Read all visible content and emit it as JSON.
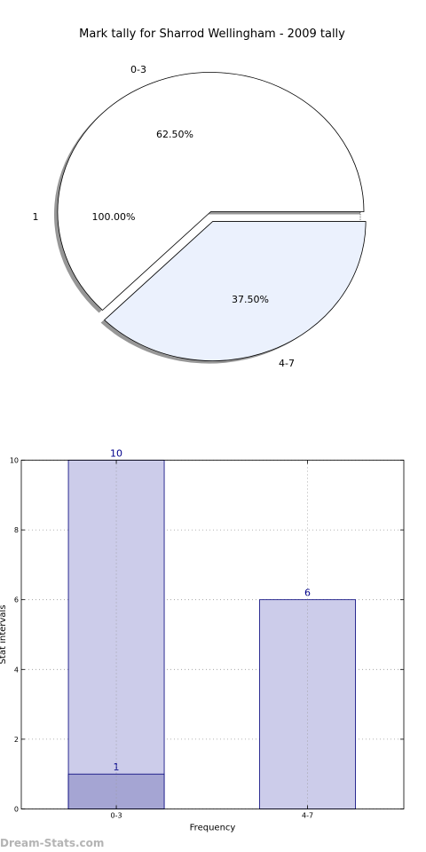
{
  "title": "Mark tally for Sharrod Wellingham - 2009 tally",
  "watermark": "Dream-Stats.com",
  "chart_data": [
    {
      "type": "pie",
      "name": "outer-pie",
      "slices": [
        {
          "label": "0-3",
          "value": 62.5,
          "pct_label": "62.50%",
          "color": "#ffffff"
        },
        {
          "label": "4-7",
          "value": 37.5,
          "pct_label": "37.50%",
          "color": "#ebf1fd"
        }
      ],
      "inner_slices": [
        {
          "label": "1",
          "value": 100,
          "pct_label": "100.00%",
          "color": "#ffffff"
        }
      ],
      "shadow": true
    },
    {
      "type": "bar",
      "name": "frequency-bars",
      "categories": [
        "0-3",
        "4-7"
      ],
      "series": [
        {
          "values": [
            10,
            6
          ],
          "color": "#ccccea",
          "labels": [
            "10",
            "6"
          ]
        },
        {
          "values": [
            1,
            0
          ],
          "color": "#a5a5d3",
          "labels": [
            "1",
            ""
          ]
        }
      ],
      "xlabel": "Frequency",
      "ylabel": "Stat intervals",
      "ylim": [
        0,
        10
      ],
      "yticks": [
        0,
        2,
        4,
        6,
        8,
        10
      ],
      "grid": true
    }
  ]
}
